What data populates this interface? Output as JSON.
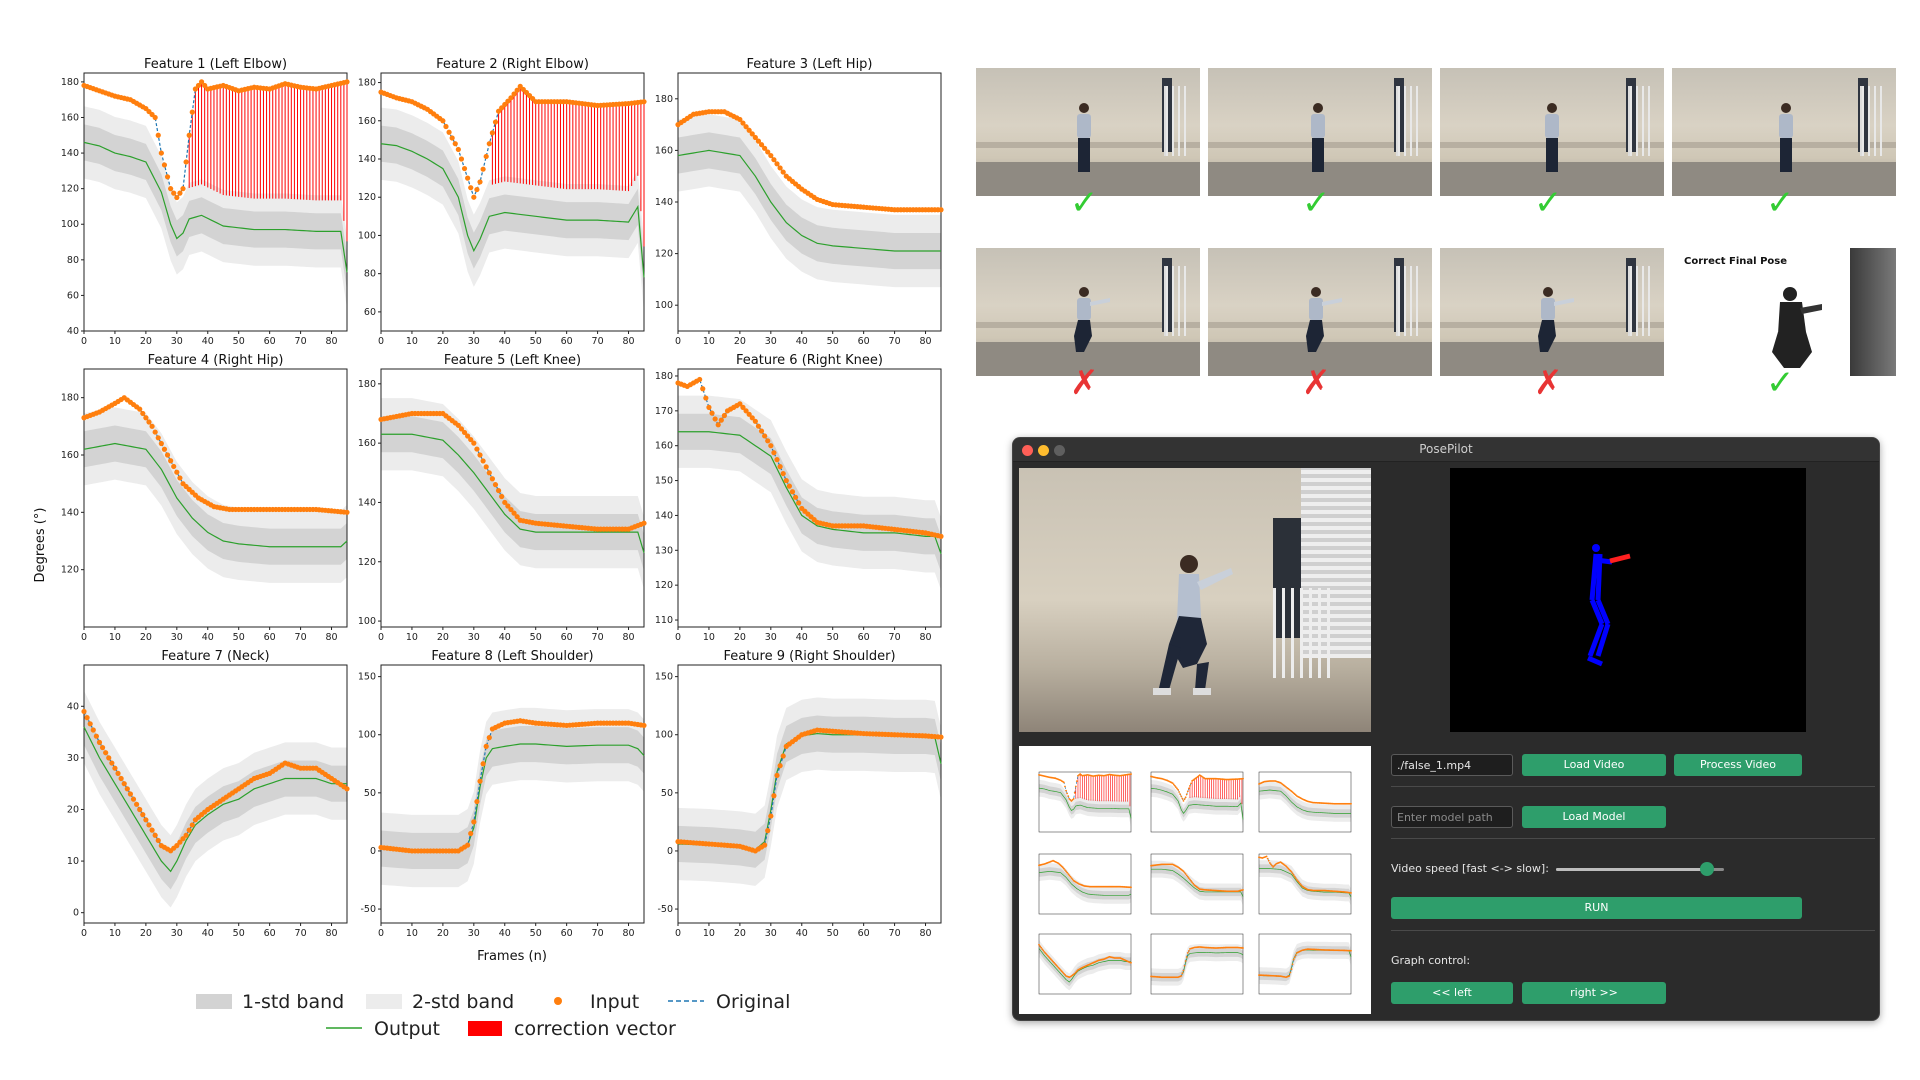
{
  "charts": {
    "ylabel": "Degrees (°)",
    "xlabel": "Frames (n)",
    "legend": {
      "band1": "1-std band",
      "band2": "2-std band",
      "input": "Input",
      "original": "Original",
      "output": "Output",
      "correction": "correction vector"
    },
    "colors": {
      "input": "#ff7f0e",
      "output": "#2ca02c",
      "original": "#1f77b4",
      "correction": "#ff0000",
      "band1": "#d3d3d3",
      "band2": "#ececec"
    }
  },
  "chart_data": [
    {
      "type": "line",
      "title": "Feature 1 (Left Elbow)",
      "xlim": [
        0,
        85
      ],
      "ylim": [
        40,
        185
      ],
      "yticks": [
        40,
        60,
        80,
        100,
        120,
        140,
        160,
        180
      ],
      "xticks": [
        0,
        10,
        20,
        30,
        40,
        50,
        60,
        70,
        80
      ],
      "series": [
        {
          "name": "Input",
          "x": [
            0,
            5,
            10,
            15,
            20,
            23,
            25,
            28,
            30,
            32,
            34,
            36,
            38,
            40,
            45,
            50,
            55,
            60,
            65,
            70,
            75,
            80,
            85
          ],
          "values": [
            178,
            175,
            172,
            170,
            165,
            160,
            140,
            120,
            115,
            120,
            150,
            176,
            180,
            176,
            178,
            175,
            177,
            176,
            179,
            177,
            176,
            178,
            180
          ]
        },
        {
          "name": "Output",
          "x": [
            0,
            5,
            10,
            15,
            20,
            25,
            28,
            30,
            32,
            34,
            38,
            45,
            55,
            65,
            75,
            83,
            85
          ],
          "values": [
            146,
            144,
            140,
            138,
            135,
            118,
            100,
            92,
            95,
            103,
            105,
            99,
            97,
            97,
            96,
            96,
            73
          ]
        }
      ]
    },
    {
      "type": "line",
      "title": "Feature 2 (Right Elbow)",
      "xlim": [
        0,
        85
      ],
      "ylim": [
        50,
        185
      ],
      "yticks": [
        60,
        80,
        100,
        120,
        140,
        160,
        180
      ],
      "xticks": [
        0,
        10,
        20,
        30,
        40,
        50,
        60,
        70,
        80
      ],
      "series": [
        {
          "name": "Input",
          "x": [
            0,
            5,
            10,
            15,
            20,
            25,
            28,
            30,
            32,
            35,
            38,
            42,
            45,
            50,
            60,
            70,
            80,
            85
          ],
          "values": [
            175,
            172,
            170,
            166,
            160,
            145,
            130,
            120,
            128,
            148,
            165,
            172,
            178,
            170,
            170,
            168,
            169,
            170
          ]
        },
        {
          "name": "Output",
          "x": [
            0,
            5,
            10,
            15,
            20,
            25,
            28,
            30,
            32,
            35,
            40,
            50,
            60,
            70,
            80,
            83,
            85
          ],
          "values": [
            148,
            147,
            144,
            140,
            135,
            120,
            100,
            92,
            98,
            110,
            112,
            110,
            108,
            108,
            107,
            115,
            78
          ]
        }
      ]
    },
    {
      "type": "line",
      "title": "Feature 3 (Left Hip)",
      "xlim": [
        0,
        85
      ],
      "ylim": [
        90,
        190
      ],
      "yticks": [
        100,
        120,
        140,
        160,
        180
      ],
      "xticks": [
        0,
        10,
        20,
        30,
        40,
        50,
        60,
        70,
        80
      ],
      "series": [
        {
          "name": "Input",
          "x": [
            0,
            5,
            10,
            15,
            20,
            25,
            30,
            35,
            40,
            45,
            50,
            60,
            70,
            80,
            85
          ],
          "values": [
            170,
            174,
            175,
            175,
            172,
            165,
            158,
            150,
            145,
            141,
            139,
            138,
            137,
            137,
            137
          ]
        },
        {
          "name": "Output",
          "x": [
            0,
            10,
            20,
            25,
            30,
            35,
            40,
            45,
            50,
            60,
            70,
            80,
            85
          ],
          "values": [
            158,
            160,
            158,
            150,
            140,
            132,
            127,
            124,
            123,
            122,
            121,
            121,
            121
          ]
        }
      ]
    },
    {
      "type": "line",
      "title": "Feature 4 (Right Hip)",
      "xlim": [
        0,
        85
      ],
      "ylim": [
        100,
        190
      ],
      "yticks": [
        120,
        140,
        160,
        180
      ],
      "xticks": [
        0,
        10,
        20,
        30,
        40,
        50,
        60,
        70,
        80
      ],
      "series": [
        {
          "name": "Input",
          "x": [
            0,
            5,
            10,
            13,
            18,
            22,
            27,
            32,
            37,
            42,
            47,
            55,
            65,
            75,
            85
          ],
          "values": [
            173,
            175,
            178,
            180,
            176,
            170,
            160,
            150,
            145,
            142,
            141,
            141,
            141,
            141,
            140
          ]
        },
        {
          "name": "Output",
          "x": [
            0,
            10,
            20,
            25,
            30,
            35,
            40,
            45,
            50,
            60,
            70,
            80,
            83,
            85
          ],
          "values": [
            162,
            164,
            162,
            155,
            145,
            138,
            133,
            130,
            129,
            128,
            128,
            128,
            128,
            130
          ]
        }
      ]
    },
    {
      "type": "line",
      "title": "Feature 5 (Left Knee)",
      "xlim": [
        0,
        85
      ],
      "ylim": [
        98,
        185
      ],
      "yticks": [
        100,
        120,
        140,
        160,
        180
      ],
      "xticks": [
        0,
        10,
        20,
        30,
        40,
        50,
        60,
        70,
        80
      ],
      "series": [
        {
          "name": "Input",
          "x": [
            0,
            10,
            20,
            25,
            30,
            35,
            40,
            45,
            50,
            60,
            70,
            80,
            85
          ],
          "values": [
            168,
            170,
            170,
            166,
            160,
            150,
            140,
            134,
            133,
            132,
            131,
            131,
            133
          ]
        },
        {
          "name": "Output",
          "x": [
            0,
            10,
            20,
            25,
            30,
            35,
            40,
            45,
            50,
            60,
            70,
            80,
            83,
            85
          ],
          "values": [
            163,
            163,
            161,
            156,
            150,
            143,
            136,
            131,
            130,
            130,
            130,
            130,
            130,
            123
          ]
        }
      ]
    },
    {
      "type": "line",
      "title": "Feature 6 (Right Knee)",
      "xlim": [
        0,
        85
      ],
      "ylim": [
        108,
        182
      ],
      "yticks": [
        110,
        120,
        130,
        140,
        150,
        160,
        170,
        180
      ],
      "xticks": [
        0,
        10,
        20,
        30,
        40,
        50,
        60,
        70,
        80
      ],
      "series": [
        {
          "name": "Input",
          "x": [
            0,
            3,
            7,
            10,
            13,
            16,
            20,
            25,
            30,
            35,
            40,
            45,
            50,
            60,
            70,
            80,
            85
          ],
          "values": [
            178,
            177,
            179,
            171,
            166,
            170,
            172,
            167,
            160,
            150,
            142,
            138,
            137,
            137,
            136,
            135,
            134
          ]
        },
        {
          "name": "Output",
          "x": [
            0,
            10,
            20,
            25,
            30,
            35,
            40,
            45,
            50,
            60,
            70,
            80,
            83,
            85
          ],
          "values": [
            164,
            164,
            163,
            160,
            157,
            148,
            140,
            137,
            136,
            135,
            135,
            134,
            134,
            129
          ]
        }
      ]
    },
    {
      "type": "line",
      "title": "Feature 7 (Neck)",
      "xlim": [
        0,
        85
      ],
      "ylim": [
        -2,
        48
      ],
      "yticks": [
        0,
        10,
        20,
        30,
        40
      ],
      "xticks": [
        0,
        10,
        20,
        30,
        40,
        50,
        60,
        70,
        80
      ],
      "series": [
        {
          "name": "Input",
          "x": [
            0,
            5,
            10,
            15,
            20,
            25,
            28,
            30,
            33,
            36,
            40,
            45,
            50,
            55,
            60,
            65,
            70,
            75,
            80,
            85
          ],
          "values": [
            39,
            33,
            28,
            23,
            18,
            13,
            12,
            13,
            15,
            18,
            20,
            22,
            24,
            26,
            27,
            29,
            28,
            28,
            26,
            24
          ]
        },
        {
          "name": "Output",
          "x": [
            0,
            5,
            10,
            15,
            20,
            25,
            28,
            30,
            33,
            36,
            40,
            45,
            50,
            55,
            60,
            65,
            70,
            75,
            80,
            85
          ],
          "values": [
            36,
            30,
            25,
            20,
            15,
            10,
            8,
            10,
            14,
            17,
            19,
            21,
            22,
            24,
            25,
            26,
            26,
            26,
            25,
            25
          ]
        }
      ]
    },
    {
      "type": "line",
      "title": "Feature 8 (Left Shoulder)",
      "xlim": [
        0,
        85
      ],
      "ylim": [
        -62,
        160
      ],
      "yticks": [
        -50,
        0,
        50,
        100,
        150
      ],
      "xticks": [
        0,
        10,
        20,
        30,
        40,
        50,
        60,
        70,
        80
      ],
      "series": [
        {
          "name": "Input",
          "x": [
            0,
            10,
            20,
            25,
            28,
            30,
            32,
            34,
            36,
            40,
            45,
            50,
            60,
            70,
            80,
            85
          ],
          "values": [
            3,
            0,
            0,
            0,
            5,
            25,
            60,
            90,
            105,
            110,
            112,
            110,
            108,
            110,
            110,
            108
          ]
        },
        {
          "name": "Output",
          "x": [
            0,
            10,
            20,
            25,
            28,
            30,
            32,
            34,
            36,
            40,
            45,
            50,
            60,
            70,
            80,
            83,
            85
          ],
          "values": [
            2,
            0,
            0,
            0,
            5,
            20,
            55,
            80,
            88,
            90,
            92,
            92,
            90,
            91,
            91,
            88,
            82
          ]
        }
      ]
    },
    {
      "type": "line",
      "title": "Feature 9 (Right Shoulder)",
      "xlim": [
        0,
        85
      ],
      "ylim": [
        -62,
        160
      ],
      "yticks": [
        -50,
        0,
        50,
        100,
        150
      ],
      "xticks": [
        0,
        10,
        20,
        30,
        40,
        50,
        60,
        70,
        80
      ],
      "series": [
        {
          "name": "Input",
          "x": [
            0,
            10,
            20,
            25,
            28,
            30,
            32,
            35,
            40,
            45,
            50,
            60,
            70,
            80,
            85
          ],
          "values": [
            8,
            6,
            4,
            0,
            5,
            30,
            65,
            90,
            100,
            104,
            103,
            101,
            100,
            99,
            98
          ]
        },
        {
          "name": "Output",
          "x": [
            0,
            10,
            20,
            25,
            28,
            30,
            32,
            35,
            40,
            45,
            50,
            60,
            70,
            80,
            83,
            85
          ],
          "values": [
            6,
            5,
            3,
            1,
            8,
            35,
            68,
            92,
            99,
            101,
            100,
            100,
            99,
            99,
            98,
            75
          ]
        }
      ]
    }
  ],
  "frames": {
    "final_label": "Correct Final Pose",
    "top_row": [
      "ok",
      "ok",
      "ok",
      "ok"
    ],
    "bottom_row": [
      "bad",
      "bad",
      "bad",
      "ok"
    ],
    "check_glyph": "✓",
    "cross_glyph": "✗"
  },
  "app": {
    "title": "PosePilot",
    "video_path": "./false_1.mp4",
    "load_video": "Load Video",
    "process_video": "Process Video",
    "model_placeholder": "Enter model path",
    "load_model": "Load Model",
    "speed_label": "Video speed [fast <-> slow]:",
    "speed_value": 0.9,
    "run": "RUN",
    "graph_control": "Graph control:",
    "left": "<< left",
    "right": "right >>"
  }
}
